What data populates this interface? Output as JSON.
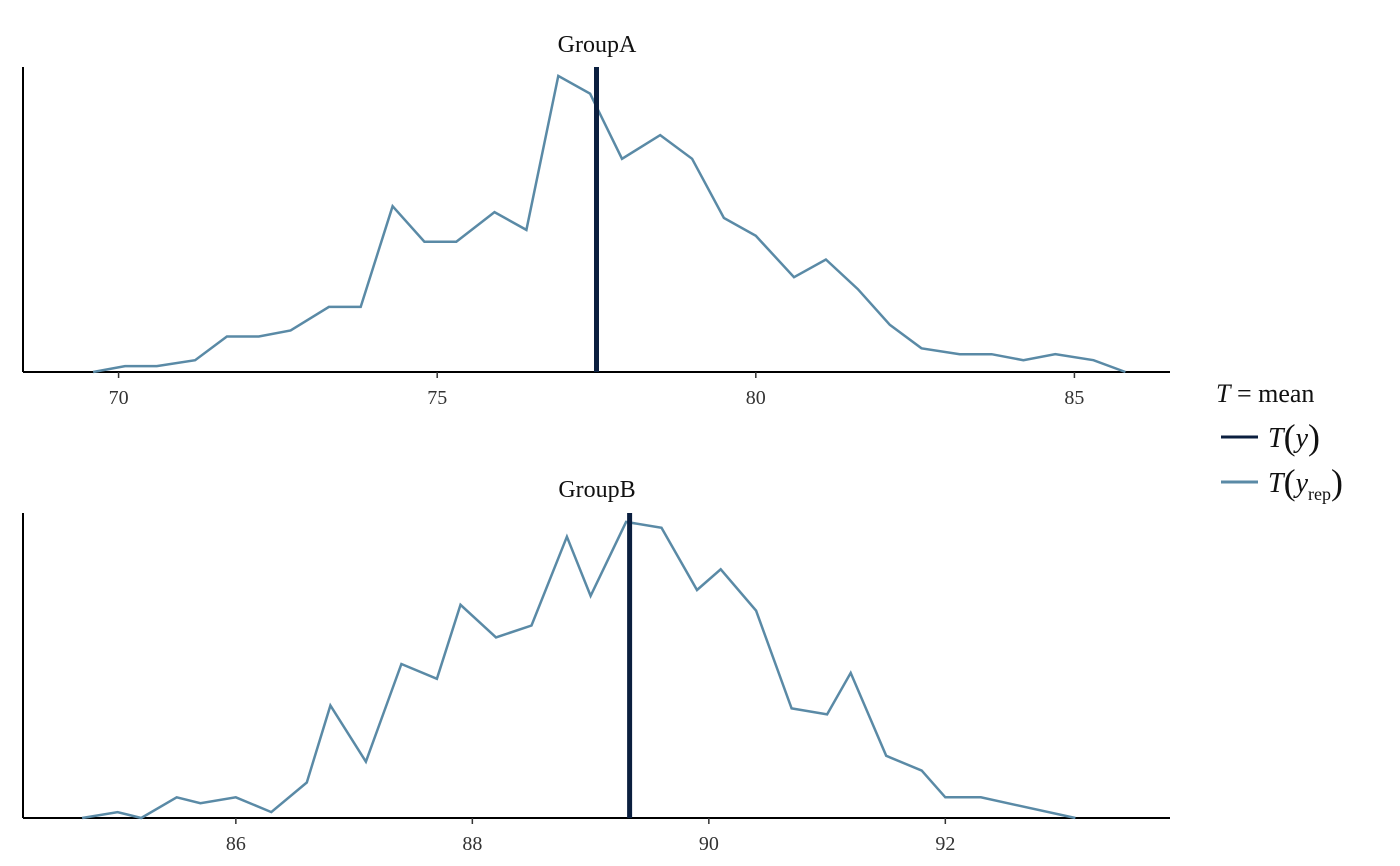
{
  "chart_data": [
    {
      "type": "line",
      "facet": "GroupA",
      "xlim": [
        68.5,
        86.5
      ],
      "ylim": [
        0,
        103
      ],
      "xticks": [
        70,
        75,
        80,
        85
      ],
      "observed_stat": 77.5,
      "series": [
        {
          "name": "T(y_rep)",
          "x": [
            69.6,
            70.1,
            70.6,
            71.2,
            71.7,
            72.2,
            72.7,
            73.3,
            73.8,
            74.3,
            74.8,
            75.3,
            75.9,
            76.4,
            76.9,
            77.4,
            77.9,
            78.5,
            79.0,
            79.5,
            80.0,
            80.6,
            81.1,
            81.6,
            82.1,
            82.6,
            83.2,
            83.7,
            84.2,
            84.7,
            85.3,
            85.8
          ],
          "y": [
            0,
            2,
            2,
            4,
            12,
            12,
            14,
            22,
            22,
            56,
            44,
            44,
            54,
            48,
            100,
            94,
            72,
            80,
            72,
            52,
            46,
            32,
            38,
            28,
            16,
            8,
            6,
            6,
            4,
            6,
            4,
            0
          ]
        }
      ]
    },
    {
      "type": "line",
      "facet": "GroupB",
      "xlim": [
        84.2,
        93.9
      ],
      "ylim": [
        0,
        103
      ],
      "xticks": [
        86,
        88,
        90,
        92
      ],
      "observed_stat": 89.33,
      "series": [
        {
          "name": "T(y_rep)",
          "x": [
            84.7,
            85.0,
            85.2,
            85.5,
            85.7,
            86.0,
            86.3,
            86.6,
            86.8,
            87.1,
            87.4,
            87.7,
            87.9,
            88.2,
            88.5,
            88.8,
            89.0,
            89.3,
            89.6,
            89.9,
            90.1,
            90.4,
            90.7,
            91.0,
            91.2,
            91.5,
            91.8,
            92.0,
            92.3,
            93.1
          ],
          "y": [
            0,
            2,
            0,
            7,
            5,
            7,
            2,
            12,
            38,
            19,
            52,
            47,
            72,
            61,
            65,
            95,
            75,
            100,
            98,
            77,
            84,
            70,
            37,
            35,
            49,
            21,
            16,
            7,
            7,
            0
          ]
        }
      ]
    }
  ],
  "legend": {
    "title_symbol": "T",
    "title_rest": " = mean",
    "items": [
      {
        "name": "T(y)",
        "color": "#0b1f3f"
      },
      {
        "name": "T(y_rep)",
        "color": "#5a8aa6"
      }
    ]
  },
  "colors": {
    "observed": "#0b1f3f",
    "replicated": "#5a8aa6",
    "axis": "#000000"
  }
}
